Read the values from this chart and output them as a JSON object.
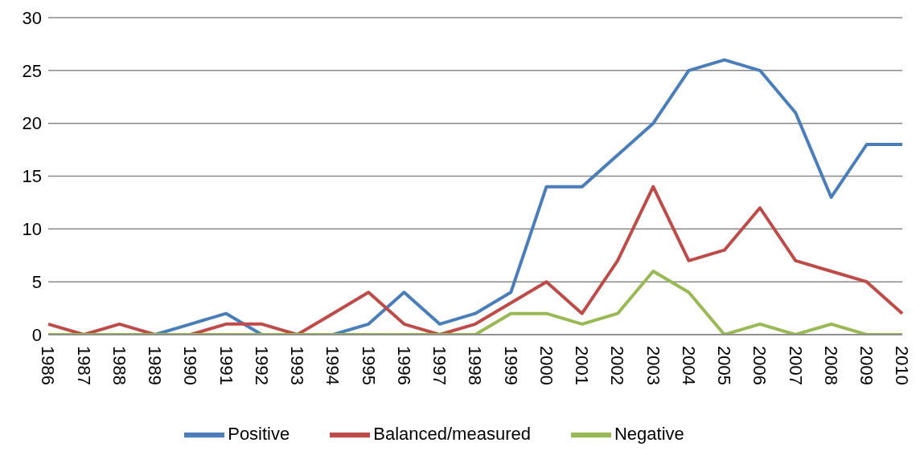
{
  "chart_data": {
    "type": "line",
    "categories": [
      "1986",
      "1987",
      "1988",
      "1989",
      "1990",
      "1991",
      "1992",
      "1993",
      "1994",
      "1995",
      "1996",
      "1997",
      "1998",
      "1999",
      "2000",
      "2001",
      "2002",
      "2003",
      "2004",
      "2005",
      "2006",
      "2007",
      "2008",
      "2009",
      "2010"
    ],
    "series": [
      {
        "name": "Positive",
        "color": "#4a7ebb",
        "values": [
          null,
          null,
          null,
          0,
          1,
          2,
          0,
          0,
          0,
          1,
          4,
          1,
          2,
          4,
          14,
          14,
          17,
          20,
          25,
          26,
          25,
          21,
          13,
          18,
          18
        ]
      },
      {
        "name": "Balanced/measured",
        "color": "#be4b48",
        "values": [
          1,
          0,
          1,
          0,
          0,
          1,
          1,
          0,
          2,
          4,
          1,
          0,
          1,
          3,
          5,
          2,
          7,
          14,
          7,
          8,
          12,
          7,
          6,
          5,
          2
        ]
      },
      {
        "name": "Negative",
        "color": "#98b954",
        "values": [
          0,
          0,
          0,
          0,
          0,
          0,
          0,
          0,
          0,
          0,
          0,
          0,
          0,
          2,
          2,
          1,
          2,
          6,
          4,
          0,
          1,
          0,
          1,
          0,
          0
        ]
      }
    ],
    "ylim": [
      0,
      30
    ],
    "yticks": [
      0,
      5,
      10,
      15,
      20,
      25,
      30
    ],
    "grid": "y",
    "legend": "bottom",
    "marker": "none",
    "line_style": "solid"
  }
}
